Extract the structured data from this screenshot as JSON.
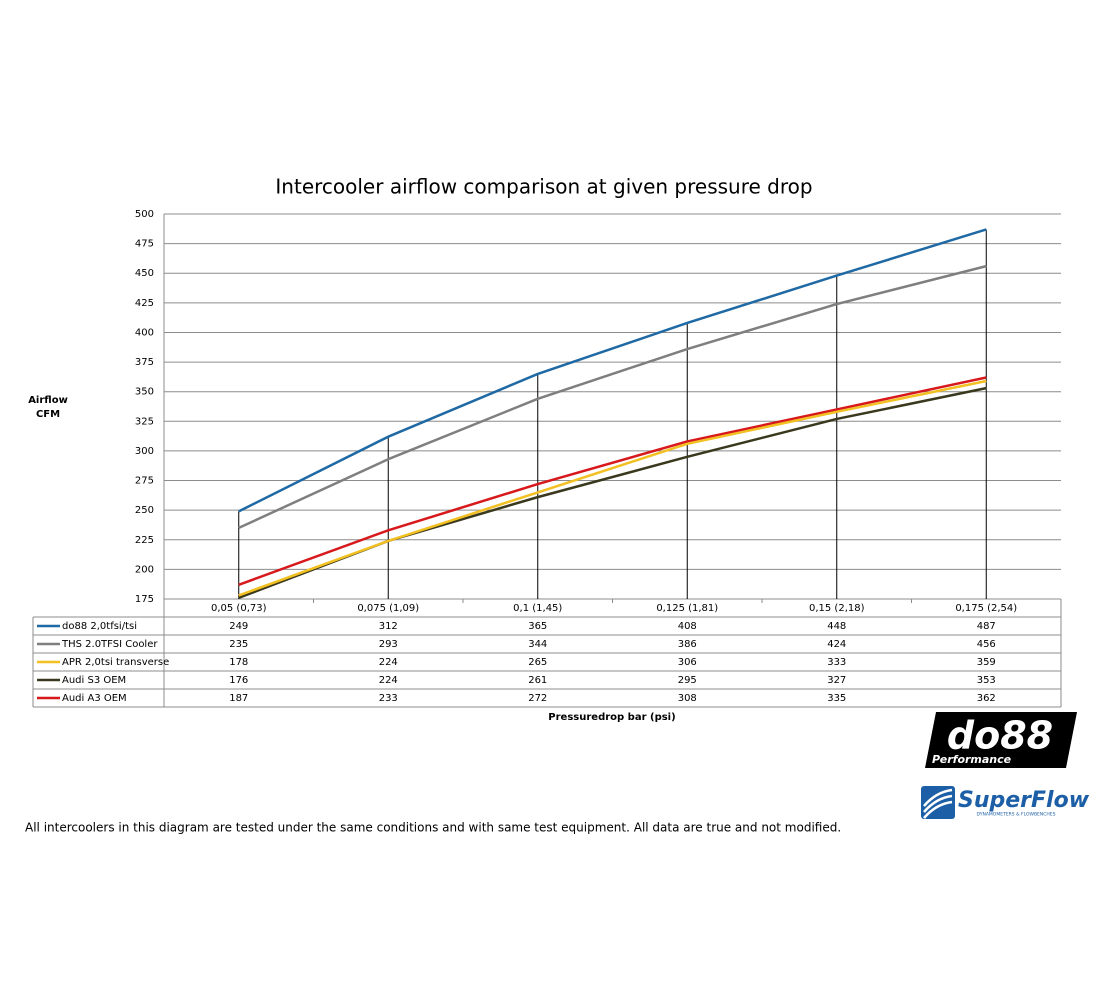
{
  "chart_data": {
    "type": "line",
    "title": "Intercooler airflow comparison at given pressure drop",
    "ylabel": [
      "Airflow",
      "CFM"
    ],
    "xlabel": "Pressuredrop bar (psi)",
    "categories": [
      "0,05 (0,73)",
      "0,075 (1,09)",
      "0,1 (1,45)",
      "0,125 (1,81)",
      "0,15 (2,18)",
      "0,175 (2,54)"
    ],
    "series": [
      {
        "name": "do88 2,0tfsi/tsi",
        "color": "#1f69a4",
        "values": [
          249,
          312,
          365,
          408,
          448,
          487
        ]
      },
      {
        "name": "THS 2.0TFSI Cooler",
        "color": "#7f7f7f",
        "values": [
          235,
          293,
          344,
          386,
          424,
          456
        ]
      },
      {
        "name": "APR 2,0tsi transverse",
        "color": "#f2c021",
        "values": [
          178,
          224,
          265,
          306,
          333,
          359
        ]
      },
      {
        "name": "Audi S3 OEM",
        "color": "#3a381d",
        "values": [
          176,
          224,
          261,
          295,
          327,
          353
        ]
      },
      {
        "name": "Audi A3 OEM",
        "color": "#d7191c",
        "values": [
          187,
          233,
          272,
          308,
          335,
          362
        ]
      }
    ],
    "ylim": [
      175,
      500
    ],
    "yticks": [
      175,
      200,
      225,
      250,
      275,
      300,
      325,
      350,
      375,
      400,
      425,
      450,
      475,
      500
    ],
    "grid": true,
    "drop_lines": true
  },
  "footnote": "All intercoolers in this diagram are tested under the same conditions and with same test equipment. All data are true and not modified.",
  "logos": [
    "do88",
    "Performance",
    "SuperFlow",
    "DYNAMOMETERS & FLOWBENCHES"
  ]
}
